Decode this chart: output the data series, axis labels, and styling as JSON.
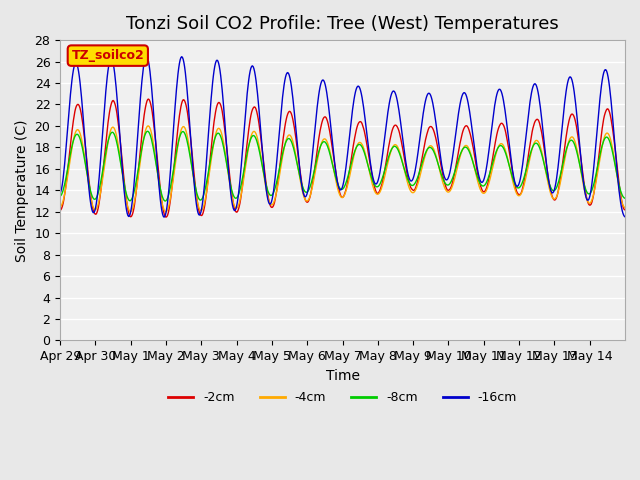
{
  "title": "Tonzi Soil CO2 Profile: Tree (West) Temperatures",
  "xlabel": "Time",
  "ylabel": "Soil Temperature (C)",
  "ylim": [
    0,
    28
  ],
  "yticks": [
    0,
    2,
    4,
    6,
    8,
    10,
    12,
    14,
    16,
    18,
    20,
    22,
    24,
    26,
    28
  ],
  "legend_label": "TZ_soilco2",
  "legend_box_color": "#ffdd00",
  "legend_box_edge": "#cc0000",
  "lines": [
    {
      "label": "-2cm",
      "color": "#dd0000"
    },
    {
      "label": "-4cm",
      "color": "#ffaa00"
    },
    {
      "label": "-8cm",
      "color": "#00cc00"
    },
    {
      "label": "-16cm",
      "color": "#0000cc"
    }
  ],
  "x_tick_labels": [
    "Apr 29",
    "Apr 30",
    "May 1",
    "May 2",
    "May 3",
    "May 4",
    "May 5",
    "May 6",
    "May 7",
    "May 8",
    "May 9",
    "May 10",
    "May 11",
    "May 12",
    "May 13",
    "May 14"
  ],
  "background_color": "#e8e8e8",
  "plot_bg_color": "#f0f0f0",
  "grid_color": "#ffffff",
  "title_fontsize": 13,
  "axis_fontsize": 10,
  "tick_fontsize": 9
}
